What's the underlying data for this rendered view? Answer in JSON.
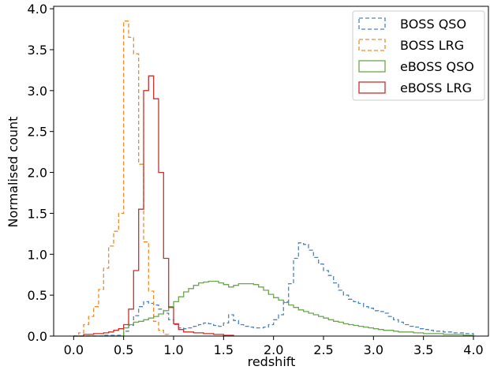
{
  "chart_data": {
    "type": "step-histogram",
    "xlabel": "redshift",
    "ylabel": "Normalised count",
    "xlim": [
      -0.2,
      4.15
    ],
    "ylim": [
      0,
      4.03
    ],
    "xticks": [
      0.0,
      0.5,
      1.0,
      1.5,
      2.0,
      2.5,
      3.0,
      3.5,
      4.0
    ],
    "xtick_labels": [
      "0.0",
      "0.5",
      "1.0",
      "1.5",
      "2.0",
      "2.5",
      "3.0",
      "3.5",
      "4.0"
    ],
    "yticks": [
      0.0,
      0.5,
      1.0,
      1.5,
      2.0,
      2.5,
      3.0,
      3.5,
      4.0
    ],
    "ytick_labels": [
      "0.0",
      "0.5",
      "1.0",
      "1.5",
      "2.0",
      "2.5",
      "3.0",
      "3.5",
      "4.0"
    ],
    "grid": false,
    "legend_position": "top-right",
    "series": [
      {
        "name": "BOSS QSO",
        "color": "#4f82bd",
        "dashed": true,
        "points": [
          [
            0.0,
            0
          ],
          [
            0.3,
            0.01
          ],
          [
            0.5,
            0.06
          ],
          [
            0.55,
            0.13
          ],
          [
            0.6,
            0.25
          ],
          [
            0.65,
            0.36
          ],
          [
            0.7,
            0.42
          ],
          [
            0.75,
            0.4
          ],
          [
            0.8,
            0.38
          ],
          [
            0.85,
            0.33
          ],
          [
            0.9,
            0.28
          ],
          [
            0.95,
            0.2
          ],
          [
            1.0,
            0.14
          ],
          [
            1.05,
            0.1
          ],
          [
            1.1,
            0.09
          ],
          [
            1.15,
            0.1
          ],
          [
            1.2,
            0.12
          ],
          [
            1.25,
            0.14
          ],
          [
            1.3,
            0.16
          ],
          [
            1.35,
            0.15
          ],
          [
            1.4,
            0.13
          ],
          [
            1.45,
            0.12
          ],
          [
            1.5,
            0.16
          ],
          [
            1.55,
            0.26
          ],
          [
            1.6,
            0.19
          ],
          [
            1.65,
            0.14
          ],
          [
            1.7,
            0.12
          ],
          [
            1.75,
            0.11
          ],
          [
            1.8,
            0.1
          ],
          [
            1.85,
            0.1
          ],
          [
            1.9,
            0.11
          ],
          [
            1.95,
            0.14
          ],
          [
            2.0,
            0.2
          ],
          [
            2.05,
            0.26
          ],
          [
            2.1,
            0.42
          ],
          [
            2.15,
            0.64
          ],
          [
            2.2,
            0.95
          ],
          [
            2.25,
            1.14
          ],
          [
            2.3,
            1.12
          ],
          [
            2.35,
            1.05
          ],
          [
            2.4,
            0.96
          ],
          [
            2.45,
            0.88
          ],
          [
            2.5,
            0.8
          ],
          [
            2.55,
            0.74
          ],
          [
            2.6,
            0.65
          ],
          [
            2.65,
            0.56
          ],
          [
            2.7,
            0.5
          ],
          [
            2.75,
            0.45
          ],
          [
            2.8,
            0.42
          ],
          [
            2.85,
            0.4
          ],
          [
            2.9,
            0.36
          ],
          [
            2.95,
            0.34
          ],
          [
            3.0,
            0.31
          ],
          [
            3.05,
            0.3
          ],
          [
            3.1,
            0.28
          ],
          [
            3.15,
            0.24
          ],
          [
            3.2,
            0.2
          ],
          [
            3.25,
            0.17
          ],
          [
            3.3,
            0.14
          ],
          [
            3.35,
            0.12
          ],
          [
            3.4,
            0.11
          ],
          [
            3.45,
            0.09
          ],
          [
            3.5,
            0.08
          ],
          [
            3.55,
            0.07
          ],
          [
            3.6,
            0.06
          ],
          [
            3.7,
            0.05
          ],
          [
            3.8,
            0.04
          ],
          [
            3.9,
            0.03
          ],
          [
            4.0,
            0
          ]
        ]
      },
      {
        "name": "BOSS LRG",
        "color": "#ef8c2c",
        "dashed": true,
        "points": [
          [
            0.0,
            0
          ],
          [
            0.05,
            0.04
          ],
          [
            0.1,
            0.14
          ],
          [
            0.15,
            0.24
          ],
          [
            0.2,
            0.36
          ],
          [
            0.25,
            0.57
          ],
          [
            0.3,
            0.83
          ],
          [
            0.35,
            1.1
          ],
          [
            0.4,
            1.28
          ],
          [
            0.45,
            1.5
          ],
          [
            0.5,
            3.85
          ],
          [
            0.55,
            3.65
          ],
          [
            0.6,
            3.45
          ],
          [
            0.65,
            2.1
          ],
          [
            0.7,
            1.15
          ],
          [
            0.75,
            0.55
          ],
          [
            0.8,
            0.18
          ],
          [
            0.85,
            0.07
          ],
          [
            0.9,
            0.02
          ],
          [
            0.95,
            0
          ]
        ]
      },
      {
        "name": "eBOSS QSO",
        "color": "#6aa84f",
        "dashed": false,
        "points": [
          [
            0.0,
            0
          ],
          [
            0.5,
            0.1
          ],
          [
            0.55,
            0.14
          ],
          [
            0.6,
            0.17
          ],
          [
            0.65,
            0.18
          ],
          [
            0.7,
            0.2
          ],
          [
            0.75,
            0.22
          ],
          [
            0.8,
            0.24
          ],
          [
            0.85,
            0.27
          ],
          [
            0.9,
            0.31
          ],
          [
            0.95,
            0.36
          ],
          [
            1.0,
            0.42
          ],
          [
            1.05,
            0.48
          ],
          [
            1.1,
            0.54
          ],
          [
            1.15,
            0.58
          ],
          [
            1.2,
            0.62
          ],
          [
            1.25,
            0.65
          ],
          [
            1.3,
            0.66
          ],
          [
            1.35,
            0.67
          ],
          [
            1.4,
            0.67
          ],
          [
            1.45,
            0.65
          ],
          [
            1.5,
            0.63
          ],
          [
            1.55,
            0.6
          ],
          [
            1.6,
            0.62
          ],
          [
            1.65,
            0.64
          ],
          [
            1.7,
            0.64
          ],
          [
            1.75,
            0.64
          ],
          [
            1.8,
            0.63
          ],
          [
            1.85,
            0.6
          ],
          [
            1.9,
            0.56
          ],
          [
            1.95,
            0.51
          ],
          [
            2.0,
            0.47
          ],
          [
            2.05,
            0.44
          ],
          [
            2.1,
            0.41
          ],
          [
            2.15,
            0.38
          ],
          [
            2.2,
            0.35
          ],
          [
            2.25,
            0.32
          ],
          [
            2.3,
            0.3
          ],
          [
            2.35,
            0.28
          ],
          [
            2.4,
            0.26
          ],
          [
            2.45,
            0.24
          ],
          [
            2.5,
            0.22
          ],
          [
            2.55,
            0.2
          ],
          [
            2.6,
            0.18
          ],
          [
            2.65,
            0.17
          ],
          [
            2.7,
            0.15
          ],
          [
            2.75,
            0.14
          ],
          [
            2.8,
            0.13
          ],
          [
            2.85,
            0.12
          ],
          [
            2.9,
            0.11
          ],
          [
            2.95,
            0.1
          ],
          [
            3.0,
            0.09
          ],
          [
            3.05,
            0.08
          ],
          [
            3.1,
            0.07
          ],
          [
            3.15,
            0.07
          ],
          [
            3.2,
            0.06
          ],
          [
            3.25,
            0.05
          ],
          [
            3.3,
            0.05
          ],
          [
            3.4,
            0.04
          ],
          [
            3.5,
            0.03
          ],
          [
            3.6,
            0.03
          ],
          [
            3.7,
            0.02
          ],
          [
            3.8,
            0.02
          ],
          [
            3.9,
            0.01
          ],
          [
            4.0,
            0
          ]
        ]
      },
      {
        "name": "eBOSS LRG",
        "color": "#c9302c",
        "dashed": false,
        "points": [
          [
            0.0,
            0
          ],
          [
            0.1,
            0.02
          ],
          [
            0.2,
            0.03
          ],
          [
            0.3,
            0.04
          ],
          [
            0.35,
            0.05
          ],
          [
            0.4,
            0.07
          ],
          [
            0.45,
            0.09
          ],
          [
            0.5,
            0.14
          ],
          [
            0.55,
            0.33
          ],
          [
            0.6,
            0.8
          ],
          [
            0.65,
            1.55
          ],
          [
            0.7,
            3.0
          ],
          [
            0.75,
            3.18
          ],
          [
            0.8,
            2.9
          ],
          [
            0.85,
            2.0
          ],
          [
            0.9,
            0.95
          ],
          [
            0.95,
            0.35
          ],
          [
            1.0,
            0.15
          ],
          [
            1.05,
            0.08
          ],
          [
            1.1,
            0.05
          ],
          [
            1.2,
            0.04
          ],
          [
            1.3,
            0.03
          ],
          [
            1.4,
            0.02
          ],
          [
            1.5,
            0.01
          ],
          [
            1.6,
            0
          ]
        ]
      }
    ]
  }
}
